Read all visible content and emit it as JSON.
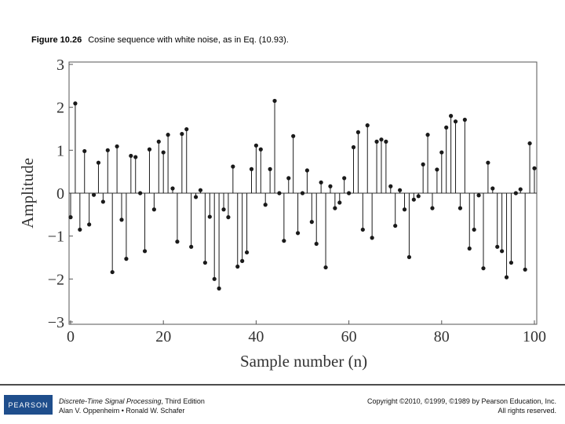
{
  "chart_data": {
    "type": "stem",
    "title": "Figure 10.26",
    "subtitle": "Cosine sequence with white noise, as in Eq. (10.93).",
    "x_label": "Sample number (n)",
    "y_label": "Amplitude",
    "color": "#1a1a1a",
    "x": [
      0,
      1,
      2,
      3,
      4,
      5,
      6,
      7,
      8,
      9,
      10,
      11,
      12,
      13,
      14,
      15,
      16,
      17,
      18,
      19,
      20,
      21,
      22,
      23,
      24,
      25,
      26,
      27,
      28,
      29,
      30,
      31,
      32,
      33,
      34,
      35,
      36,
      37,
      38,
      39,
      40,
      41,
      42,
      43,
      44,
      45,
      46,
      47,
      48,
      49,
      50,
      51,
      52,
      53,
      54,
      55,
      56,
      57,
      58,
      59,
      60,
      61,
      62,
      63,
      64,
      65,
      66,
      67,
      68,
      69,
      70,
      71,
      72,
      73,
      74,
      75,
      76,
      77,
      78,
      79,
      80,
      81,
      82,
      83,
      84,
      85,
      86,
      87,
      88,
      89,
      90,
      91,
      92,
      93,
      94,
      95,
      96,
      97,
      98,
      99,
      100
    ],
    "values": [
      -0.56,
      2.09,
      -0.85,
      0.98,
      -0.73,
      -0.04,
      0.71,
      -0.2,
      1.0,
      -1.84,
      1.09,
      -0.62,
      -1.53,
      0.87,
      0.84,
      0,
      -1.35,
      1.02,
      -0.38,
      1.2,
      0.95,
      1.36,
      0.11,
      -1.13,
      1.38,
      1.49,
      -1.25,
      -0.09,
      0.07,
      -1.62,
      -0.55,
      -2.0,
      -2.22,
      -0.38,
      -0.56,
      0.62,
      -1.71,
      -1.58,
      -1.38,
      0.56,
      1.11,
      1.02,
      -0.27,
      0.56,
      2.15,
      0,
      -1.11,
      0.35,
      1.33,
      -0.93,
      0,
      0.53,
      -0.67,
      -1.18,
      0.25,
      -1.73,
      0.16,
      -0.35,
      -0.22,
      0.35,
      0,
      1.07,
      1.42,
      -0.85,
      1.58,
      -1.04,
      1.2,
      1.25,
      1.2,
      0.16,
      -0.76,
      0.07,
      -0.38,
      -1.49,
      -0.15,
      -0.07,
      0.67,
      1.36,
      -0.35,
      0.55,
      0.95,
      1.53,
      1.8,
      1.67,
      -0.35,
      1.71,
      -1.29,
      -0.85,
      -0.05,
      -1.75,
      0.71,
      0.11,
      -1.25,
      -1.35,
      -1.96,
      -1.62,
      0,
      0.09,
      -1.78,
      1.16,
      0.58
    ],
    "xlim": [
      0,
      100
    ],
    "ylim": [
      -3,
      3
    ],
    "xticks": [
      0,
      20,
      40,
      60,
      80,
      100
    ],
    "yticks": [
      {
        "value": -3,
        "label": "−3"
      },
      {
        "value": -2,
        "label": "−2"
      },
      {
        "value": -1,
        "label": "−1"
      },
      0,
      1,
      2,
      3
    ]
  },
  "footer": {
    "logo": "PEARSON",
    "book_title": "Discrete-Time Signal Processing",
    "edition": ", Third Edition",
    "authors": "Alan V. Oppenheim • Ronald W. Schafer",
    "copyright": "Copyright ©2010, ©1999, ©1989 by Pearson Education, Inc.",
    "rights": "All rights reserved."
  }
}
